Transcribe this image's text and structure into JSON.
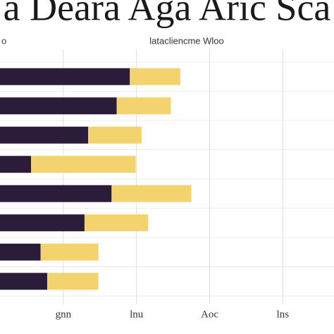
{
  "chart_data": {
    "type": "barh-stacked",
    "title": "a Deara Aga Aric Sca",
    "subtitle": "latacliencme Wloo",
    "y_label": "o",
    "categories": [
      null,
      null,
      null,
      null,
      null,
      null,
      null,
      null
    ],
    "series": [
      {
        "color": "#2b1d3a",
        "values": [
          191,
          173,
          134,
          56,
          166,
          129,
          69,
          78
        ]
      },
      {
        "color": "#f3d36e",
        "values": [
          69,
          74,
          73,
          143,
          109,
          87,
          79,
          70
        ]
      }
    ],
    "xlim": [
      0,
      470
    ],
    "xticks": [
      {
        "value": 100,
        "label": "gnn"
      },
      {
        "value": 200,
        "label": "lnu"
      },
      {
        "value": 300,
        "label": "Aoc"
      },
      {
        "value": 400,
        "label": "lns"
      }
    ],
    "grid": true
  }
}
